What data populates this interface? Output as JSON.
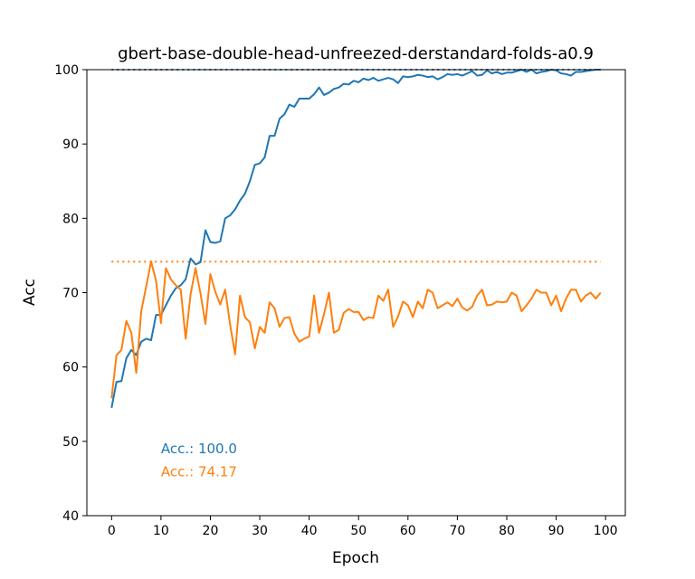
{
  "chart_data": {
    "type": "line",
    "title": "gbert-base-double-head-unfreezed-derstandard-folds-a0.9",
    "xlabel": "Epoch",
    "ylabel": "Acc",
    "xlim": [
      -5,
      104
    ],
    "ylim": [
      40,
      100
    ],
    "xticks": [
      0,
      10,
      20,
      30,
      40,
      50,
      60,
      70,
      80,
      90,
      100
    ],
    "yticks": [
      40,
      50,
      60,
      70,
      80,
      90,
      100
    ],
    "grid": false,
    "colors": {
      "train": "#1f77b4",
      "val": "#ff7f0e"
    },
    "series": [
      {
        "color": "#1f77b4",
        "values": [
          54.5,
          58.0,
          58.1,
          61.2,
          62.3,
          61.6,
          63.4,
          63.8,
          63.6,
          67.0,
          67.0,
          68.3,
          69.6,
          70.6,
          71.0,
          71.8,
          74.6,
          73.8,
          74.1,
          78.4,
          76.8,
          76.7,
          76.9,
          80.0,
          80.4,
          81.2,
          82.4,
          83.3,
          85.0,
          87.2,
          87.4,
          88.2,
          91.1,
          91.1,
          93.4,
          94.0,
          95.3,
          95.0,
          96.1,
          96.1,
          96.1,
          96.7,
          97.6,
          96.6,
          96.9,
          97.4,
          97.6,
          98.1,
          98.0,
          98.5,
          98.3,
          98.8,
          98.6,
          98.9,
          98.5,
          98.7,
          98.9,
          98.7,
          98.2,
          99.1,
          99.0,
          99.1,
          99.3,
          99.2,
          99.0,
          99.1,
          98.7,
          99.0,
          99.4,
          99.3,
          99.4,
          99.2,
          99.5,
          99.8,
          99.2,
          99.3,
          99.9,
          99.5,
          99.7,
          99.4,
          99.6,
          99.6,
          99.8,
          100.0,
          99.7,
          100.0,
          99.5,
          99.7,
          99.8,
          100.0,
          99.9,
          99.5,
          99.4,
          99.2,
          99.7,
          99.7,
          99.8,
          99.9,
          100.0,
          100.0
        ]
      },
      {
        "color": "#ff7f0e",
        "values": [
          55.8,
          61.6,
          62.3,
          66.2,
          64.6,
          59.2,
          67.5,
          70.8,
          74.2,
          71.6,
          65.9,
          73.3,
          71.8,
          71.0,
          70.4,
          63.8,
          69.8,
          73.3,
          69.9,
          65.8,
          72.5,
          70.1,
          68.4,
          70.4,
          65.7,
          61.7,
          69.6,
          66.7,
          66.0,
          62.5,
          65.4,
          64.6,
          68.7,
          67.9,
          65.4,
          66.6,
          66.7,
          64.5,
          63.4,
          63.8,
          64.1,
          69.6,
          64.6,
          67.1,
          70.0,
          64.6,
          65.0,
          67.3,
          67.8,
          67.4,
          67.4,
          66.3,
          66.7,
          66.6,
          69.6,
          68.9,
          70.4,
          65.4,
          66.8,
          68.8,
          68.3,
          66.7,
          68.8,
          67.9,
          70.4,
          70.0,
          67.9,
          68.3,
          68.7,
          68.2,
          69.2,
          68.0,
          67.6,
          68.1,
          69.6,
          70.4,
          68.3,
          68.4,
          68.8,
          68.7,
          68.8,
          70.0,
          69.6,
          67.5,
          68.3,
          69.2,
          70.4,
          70.0,
          70.0,
          68.3,
          69.6,
          67.5,
          69.2,
          70.4,
          70.4,
          68.8,
          69.6,
          70.0,
          69.2,
          70.0
        ]
      }
    ],
    "reference_lines": [
      {
        "y": 100.0,
        "color": "#1f77b4",
        "style": "dotted"
      },
      {
        "y": 74.17,
        "color": "#ff7f0e",
        "style": "dotted"
      }
    ],
    "annotations": [
      {
        "text": "Acc.: 100.0",
        "color": "#1f77b4",
        "x": 10,
        "y": 48.4
      },
      {
        "text": "Acc.: 74.17",
        "color": "#ff7f0e",
        "x": 10,
        "y": 45.3
      }
    ]
  }
}
